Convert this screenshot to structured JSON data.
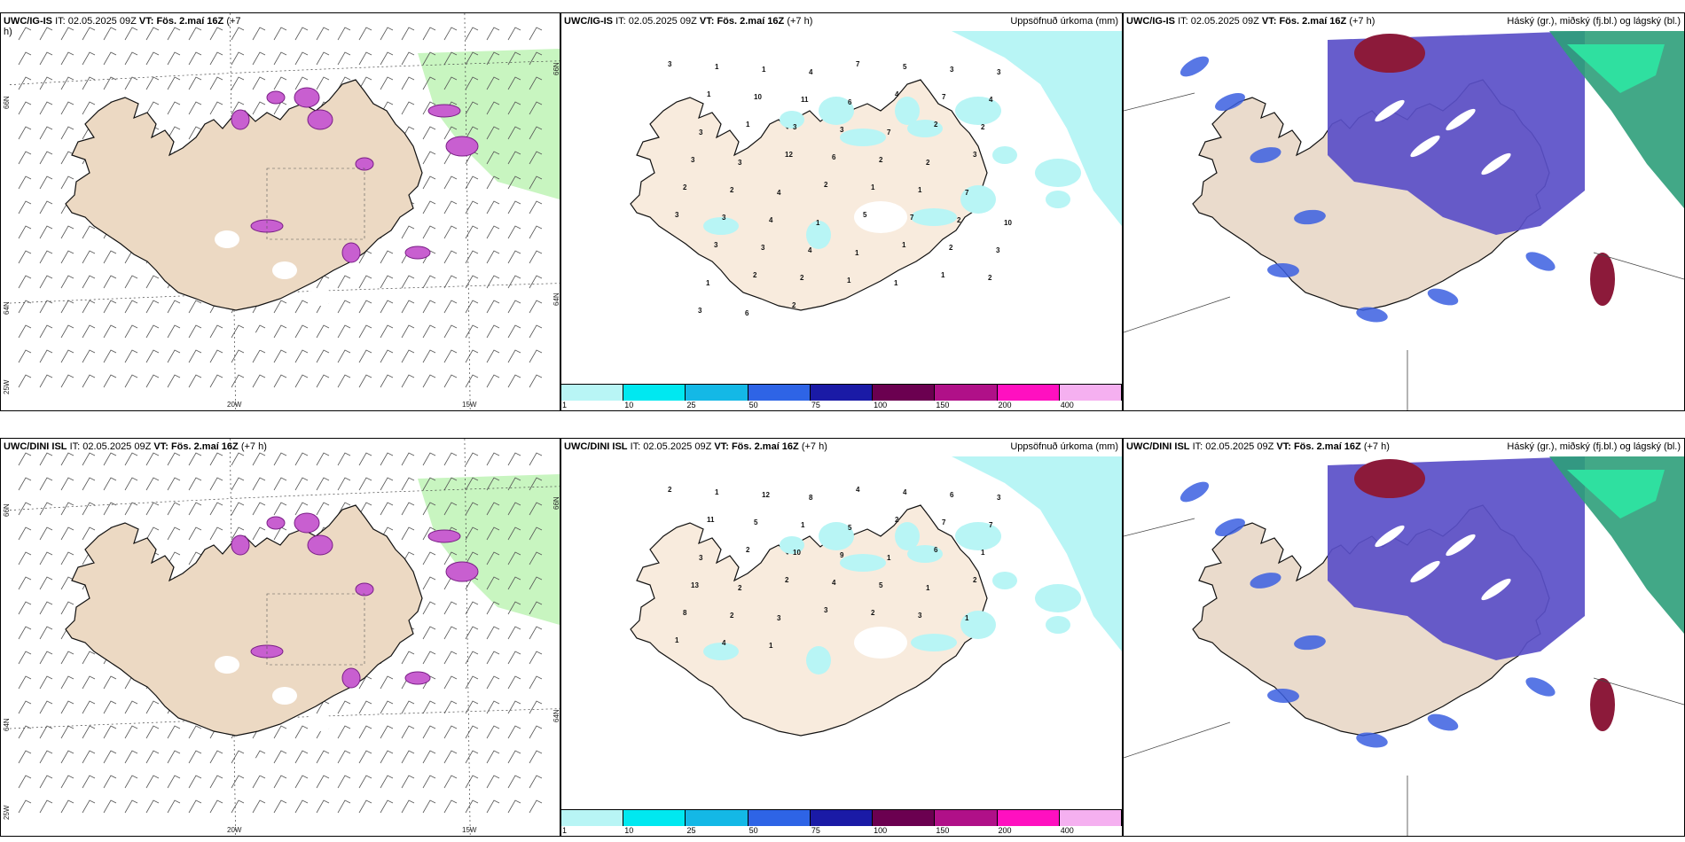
{
  "panels": [
    {
      "id": "p1",
      "model": "UWC/IG-IS",
      "it_label": "IT:",
      "it": "02.05.2025 09Z",
      "vt_label": "VT:",
      "vt": "Fös. 2.maí 16Z",
      "lead": "(+7",
      "lead2": "h)",
      "right": "",
      "type": "wind"
    },
    {
      "id": "p2",
      "model": "UWC/IG-IS",
      "it_label": "IT:",
      "it": "02.05.2025 09Z",
      "vt_label": "VT:",
      "vt": "Fös. 2.maí 16Z",
      "lead": "(+7 h)",
      "right": "Uppsöfnuð úrkoma (mm)",
      "type": "precip"
    },
    {
      "id": "p3",
      "model": "UWC/IG-IS",
      "it_label": "IT:",
      "it": "02.05.2025 09Z",
      "vt_label": "VT:",
      "vt": "Fös. 2.maí 16Z",
      "lead": "(+7 h)",
      "right": "Háský (gr.), miðský (fj.bl.) og lágský (bl.)",
      "type": "cloud"
    },
    {
      "id": "p4",
      "model": "UWC/DINI ISL",
      "it_label": "IT:",
      "it": "02.05.2025 09Z",
      "vt_label": "VT:",
      "vt": "Fös. 2.maí 16Z",
      "lead": "(+7 h)",
      "right": "",
      "type": "wind"
    },
    {
      "id": "p5",
      "model": "UWC/DINI ISL",
      "it_label": "IT:",
      "it": "02.05.2025 09Z",
      "vt_label": "VT:",
      "vt": "Fös. 2.maí 16Z",
      "lead": "(+7 h)",
      "right": "Uppsöfnuð úrkoma (mm)",
      "type": "precip"
    },
    {
      "id": "p6",
      "model": "UWC/DINI ISL",
      "it_label": "IT:",
      "it": "02.05.2025 09Z",
      "vt_label": "VT:",
      "vt": "Fös. 2.maí 16Z",
      "lead": "(+7 h)",
      "right": "Háský (gr.), miðský (fj.bl.) og lágský (bl.)",
      "type": "cloud"
    }
  ],
  "axis_labels": {
    "lon_20": "20W",
    "lon_15": "15W",
    "lat_66": "66N",
    "lat_64": "64N",
    "lon_25": "25W"
  },
  "colorbar": {
    "labels": [
      "1",
      "10",
      "25",
      "50",
      "75",
      "100",
      "150",
      "200",
      "400"
    ],
    "colors": [
      "#b8f5f5",
      "#00e8f0",
      "#14b8e6",
      "#2e64e6",
      "#1a1aa6",
      "#6b0050",
      "#b01088",
      "#ff10c0",
      "#f5b0f0"
    ]
  },
  "precip_numbers_top": [
    "3",
    "1",
    "1",
    "4",
    "7",
    "5",
    "3",
    "3",
    "1",
    "10",
    "11",
    "6",
    "4",
    "7",
    "4",
    "3",
    "1",
    "3",
    "3",
    "7",
    "2",
    "2",
    "3",
    "3",
    "12",
    "6",
    "2",
    "2",
    "3",
    "2",
    "2",
    "4",
    "2",
    "1",
    "1",
    "7",
    "3",
    "3",
    "4",
    "1",
    "5",
    "7",
    "2",
    "10",
    "3",
    "3",
    "4",
    "1",
    "1",
    "2",
    "3",
    "1",
    "2",
    "2",
    "1",
    "1",
    "1",
    "2",
    "3",
    "6",
    "2"
  ],
  "precip_numbers_bottom": [
    "2",
    "1",
    "12",
    "8",
    "4",
    "4",
    "6",
    "3",
    "11",
    "5",
    "1",
    "5",
    "2",
    "7",
    "7",
    "3",
    "2",
    "10",
    "9",
    "1",
    "6",
    "1",
    "13",
    "2",
    "2",
    "4",
    "5",
    "1",
    "2",
    "8",
    "2",
    "3",
    "3",
    "2",
    "3",
    "1",
    "1",
    "4",
    "1"
  ]
}
